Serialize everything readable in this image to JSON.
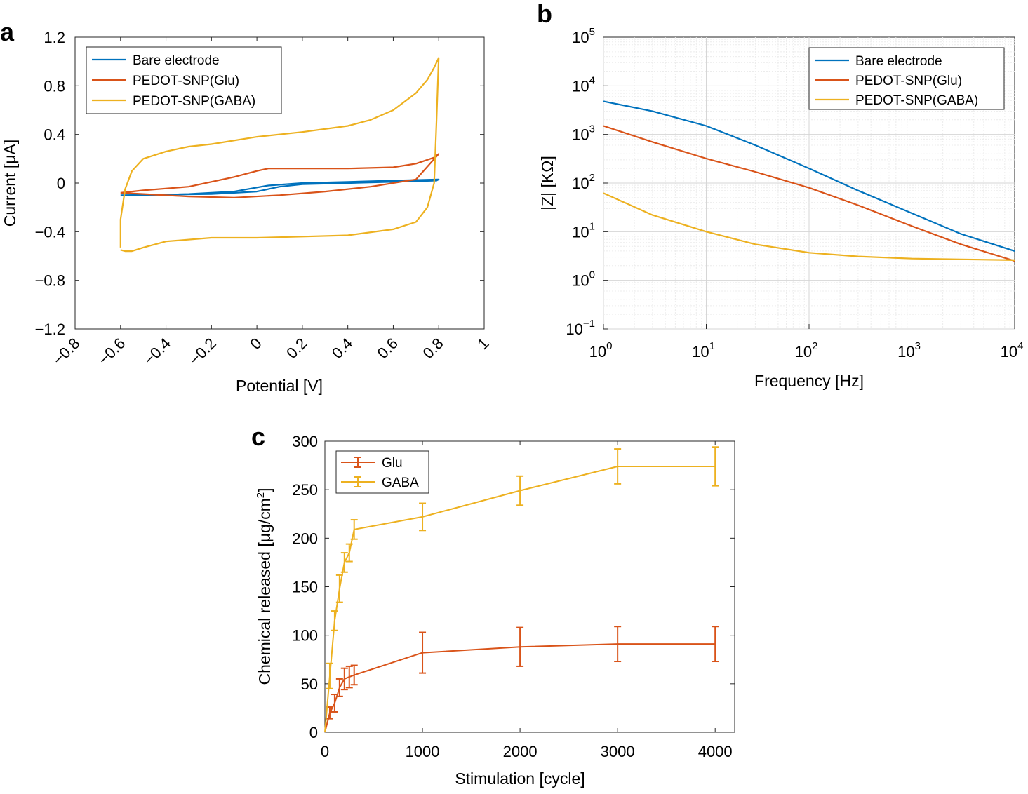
{
  "chart_data": [
    {
      "panel": "a",
      "type": "line",
      "xlabel": "Potential [V]",
      "ylabel": "Current [μA]",
      "xlim": [
        -0.8,
        1
      ],
      "ylim": [
        -1.2,
        1.2
      ],
      "xticks": [
        -0.8,
        -0.6,
        -0.4,
        -0.2,
        0,
        0.2,
        0.4,
        0.6,
        0.8,
        1
      ],
      "xtick_labels": [
        "−0.8",
        "−0.6",
        "−0.4",
        "−0.2",
        "0",
        "0.2",
        "0.4",
        "0.6",
        "0.8",
        "1"
      ],
      "yticks": [
        -1.2,
        -0.8,
        -0.4,
        0,
        0.4,
        0.8,
        1.2
      ],
      "ytick_labels": [
        "−1.2",
        "−0.8",
        "−0.4",
        "0",
        "0.4",
        "0.8",
        "1.2"
      ],
      "legend_position": "top-left",
      "grid": false,
      "series": [
        {
          "name": "Bare electrode",
          "color": "#0072BD",
          "x": [
            -0.6,
            -0.4,
            -0.2,
            0.0,
            0.1,
            0.2,
            0.4,
            0.6,
            0.79,
            0.8,
            0.6,
            0.4,
            0.2,
            0.05,
            -0.1,
            -0.3,
            -0.5,
            -0.6
          ],
          "y": [
            -0.1,
            -0.095,
            -0.09,
            -0.07,
            -0.03,
            -0.01,
            0.0,
            0.01,
            0.02,
            0.03,
            0.02,
            0.01,
            0.0,
            -0.02,
            -0.07,
            -0.09,
            -0.1,
            -0.1
          ]
        },
        {
          "name": "PEDOT-SNP(Glu)",
          "color": "#D95319",
          "x": [
            -0.6,
            -0.5,
            -0.3,
            -0.1,
            0.0,
            0.05,
            0.2,
            0.4,
            0.6,
            0.7,
            0.78,
            0.8,
            0.7,
            0.5,
            0.3,
            0.1,
            -0.1,
            -0.3,
            -0.5,
            -0.6
          ],
          "y": [
            -0.08,
            -0.06,
            -0.03,
            0.05,
            0.1,
            0.12,
            0.12,
            0.12,
            0.13,
            0.16,
            0.21,
            0.24,
            0.03,
            -0.03,
            -0.07,
            -0.1,
            -0.12,
            -0.11,
            -0.09,
            -0.08
          ]
        },
        {
          "name": "PEDOT-SNP(GABA)",
          "color": "#EDB120",
          "x": [
            -0.6,
            -0.6,
            -0.58,
            -0.55,
            -0.5,
            -0.4,
            -0.3,
            -0.2,
            0.0,
            0.2,
            0.4,
            0.5,
            0.6,
            0.7,
            0.75,
            0.78,
            0.8,
            0.79,
            0.78,
            0.75,
            0.7,
            0.6,
            0.4,
            0.2,
            0.0,
            -0.2,
            -0.4,
            -0.5,
            -0.55,
            -0.58,
            -0.6
          ],
          "y": [
            -0.53,
            -0.3,
            -0.05,
            0.1,
            0.2,
            0.26,
            0.3,
            0.32,
            0.38,
            0.42,
            0.47,
            0.52,
            0.6,
            0.74,
            0.85,
            0.95,
            1.03,
            0.5,
            0.0,
            -0.2,
            -0.32,
            -0.38,
            -0.43,
            -0.44,
            -0.45,
            -0.45,
            -0.48,
            -0.53,
            -0.56,
            -0.56,
            -0.55
          ]
        }
      ]
    },
    {
      "panel": "b",
      "type": "line",
      "xscale": "log",
      "yscale": "log",
      "xlabel": "Frequency [Hz]",
      "ylabel": "|Z| [KΩ]",
      "xlim": [
        1,
        10000
      ],
      "ylim": [
        0.1,
        100000
      ],
      "xtick_bases": [
        "10",
        "10",
        "10",
        "10",
        "10"
      ],
      "xtick_exps": [
        "0",
        "1",
        "2",
        "3",
        "4"
      ],
      "ytick_bases": [
        "10",
        "10",
        "10",
        "10",
        "10",
        "10",
        "10"
      ],
      "ytick_exps": [
        "−1",
        "0",
        "1",
        "2",
        "3",
        "4",
        "5"
      ],
      "legend_position": "top-right",
      "grid": true,
      "series": [
        {
          "name": "Bare electrode",
          "color": "#0072BD",
          "x": [
            1,
            3,
            10,
            30,
            100,
            300,
            1000,
            3000,
            10000
          ],
          "y": [
            4800,
            3000,
            1500,
            600,
            200,
            70,
            24,
            9,
            4
          ]
        },
        {
          "name": "PEDOT-SNP(Glu)",
          "color": "#D95319",
          "x": [
            1,
            3,
            10,
            30,
            100,
            300,
            1000,
            3000,
            10000
          ],
          "y": [
            1500,
            700,
            320,
            170,
            80,
            35,
            13,
            5.5,
            2.5
          ]
        },
        {
          "name": "PEDOT-SNP(GABA)",
          "color": "#EDB120",
          "x": [
            1,
            3,
            10,
            30,
            100,
            300,
            1000,
            3000,
            10000
          ],
          "y": [
            62,
            22,
            10,
            5.5,
            3.7,
            3.1,
            2.8,
            2.7,
            2.6
          ]
        }
      ]
    },
    {
      "panel": "c",
      "type": "line",
      "error_bars": true,
      "xlabel": "Stimulation [cycle]",
      "ylabel_main": "Chemical released [μg/cm",
      "ylabel_sup": "2",
      "ylabel_end": "]",
      "xlim": [
        0,
        4200
      ],
      "ylim": [
        0,
        300
      ],
      "xticks": [
        0,
        1000,
        2000,
        3000,
        4000
      ],
      "xtick_labels": [
        "0",
        "1000",
        "2000",
        "3000",
        "4000"
      ],
      "yticks": [
        0,
        50,
        100,
        150,
        200,
        250,
        300
      ],
      "ytick_labels": [
        "0",
        "50",
        "100",
        "150",
        "200",
        "250",
        "300"
      ],
      "legend_position": "top-left",
      "grid": false,
      "series": [
        {
          "name": "Glu",
          "color": "#D95319",
          "x": [
            0,
            50,
            100,
            150,
            200,
            250,
            300,
            1000,
            2000,
            3000,
            4000
          ],
          "y": [
            0,
            20,
            30,
            46,
            55,
            57,
            59,
            82,
            88,
            91,
            91
          ],
          "err": [
            0,
            6,
            9,
            9,
            11,
            11,
            10,
            21,
            20,
            18,
            18
          ]
        },
        {
          "name": "GABA",
          "color": "#EDB120",
          "x": [
            0,
            50,
            100,
            150,
            200,
            250,
            300,
            1000,
            2000,
            3000,
            4000
          ],
          "y": [
            0,
            58,
            115,
            148,
            175,
            185,
            209,
            222,
            249,
            274,
            274
          ],
          "err": [
            0,
            13,
            10,
            14,
            10,
            9,
            10,
            14,
            15,
            18,
            20
          ]
        }
      ]
    }
  ],
  "panel_labels": {
    "a": "a",
    "b": "b",
    "c": "c"
  }
}
